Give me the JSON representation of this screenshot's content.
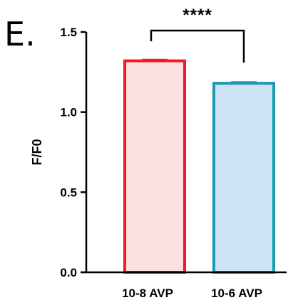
{
  "panel_label": "E.",
  "chart_data": {
    "type": "bar",
    "categories": [
      "10-8 AVP",
      "10-6 AVP"
    ],
    "values": [
      1.32,
      1.18
    ],
    "errors": [
      0.008,
      0.008
    ],
    "bar_fills": [
      "#fde0e0",
      "#cfe3f7"
    ],
    "bar_strokes": [
      "#f21b26",
      "#1b9bb0"
    ],
    "ylabel": "F/F0",
    "ylim": [
      0,
      1.5
    ],
    "yticks": [
      0.0,
      0.5,
      1.0,
      1.5
    ],
    "ytick_labels": [
      "0.0",
      "0.5",
      "1.0",
      "1.5"
    ],
    "significance": {
      "pair": [
        0,
        1
      ],
      "label": "****"
    }
  }
}
